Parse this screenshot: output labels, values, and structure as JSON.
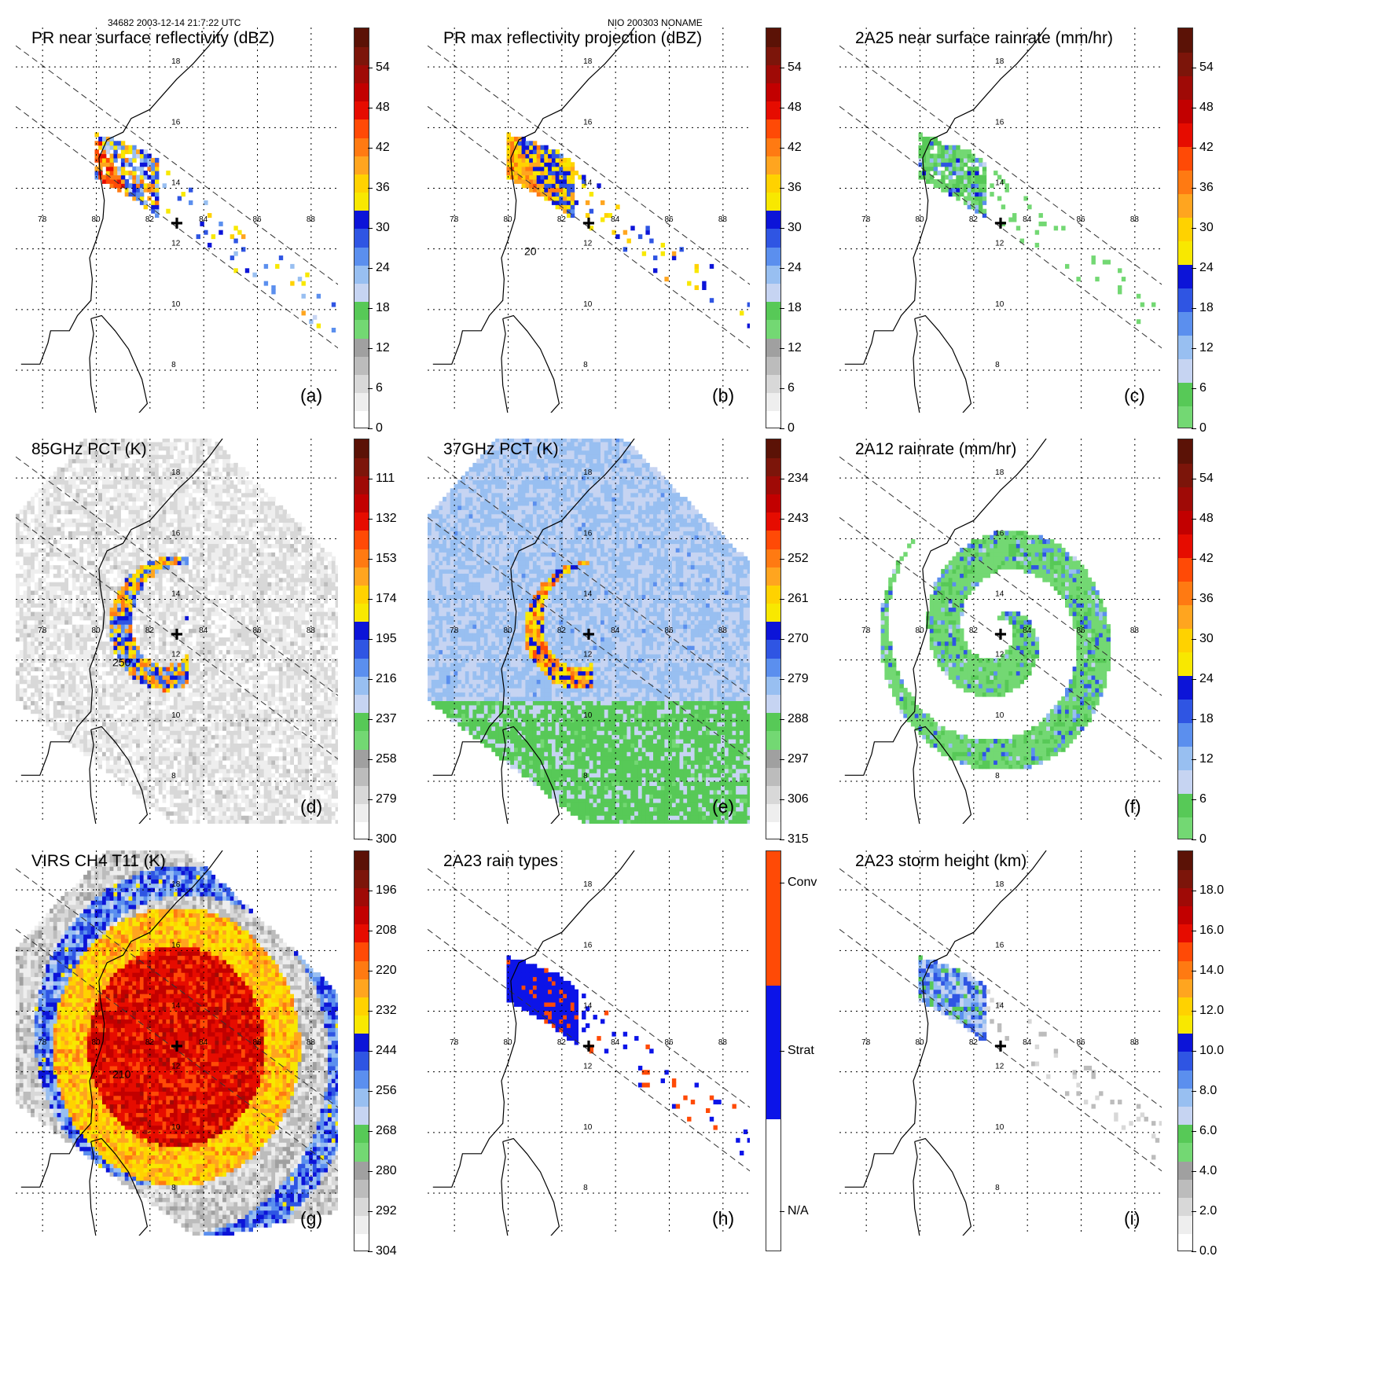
{
  "header": {
    "left": "34682 2003-12-14 21:7:22 UTC",
    "center": "NIO 200303 NONAME"
  },
  "map": {
    "lon_labels": [
      "78",
      "80",
      "82",
      "84",
      "86",
      "88"
    ],
    "lat_labels": [
      "18",
      "16",
      "14",
      "12",
      "10",
      "8"
    ]
  },
  "palettes": {
    "reflect": [
      "#ffffff",
      "#eeeeee",
      "#d8d8d8",
      "#bcbcbc",
      "#a0a0a0",
      "#73d873",
      "#57c957",
      "#c6d4f2",
      "#98bff1",
      "#5b8fee",
      "#2f55e3",
      "#0c14d8",
      "#f8e800",
      "#ffd200",
      "#ffa51f",
      "#ff7a12",
      "#ff4a06",
      "#e60c00",
      "#c20000",
      "#9f0a06",
      "#7c150a",
      "#5b1206"
    ],
    "bt": [
      "#ffffff",
      "#eeeeee",
      "#d8d8d8",
      "#bcbcbc",
      "#a0a0a0",
      "#73d873",
      "#57c957",
      "#c6d4f2",
      "#98bff1",
      "#5b8fee",
      "#2f55e3",
      "#0c14d8",
      "#f8e800",
      "#ffd200",
      "#ffa51f",
      "#ff7a12",
      "#ff4a06",
      "#e60c00",
      "#c20000",
      "#9f0a06",
      "#7c150a",
      "#5b1206"
    ],
    "rain": [
      "#73d873",
      "#57c957",
      "#c6d4f2",
      "#98bff1",
      "#5b8fee",
      "#2f55e3",
      "#0c14d8",
      "#f8e800",
      "#ffd200",
      "#ffa51f",
      "#ff7a12",
      "#ff4a06",
      "#e60c00",
      "#c20000",
      "#9f0a06",
      "#7c150a",
      "#5b1206"
    ],
    "height": [
      "#ffffff",
      "#eeeeee",
      "#d8d8d8",
      "#bcbcbc",
      "#a0a0a0",
      "#73d873",
      "#57c957",
      "#c6d4f2",
      "#98bff1",
      "#5b8fee",
      "#2f55e3",
      "#0c14d8",
      "#f8e800",
      "#ffd200",
      "#ffa51f",
      "#ff7a12",
      "#ff4a06",
      "#e60c00",
      "#c20000",
      "#9f0a06",
      "#7c150a",
      "#5b1206"
    ],
    "raintype": [
      "#ffffff",
      "#0c14e8",
      "#ff4a06"
    ]
  },
  "panels": [
    {
      "title": "PR near surface reflectivity (dBZ)",
      "label": "(a)",
      "palette": "reflect",
      "ticks": [
        "0",
        "6",
        "12",
        "18",
        "24",
        "30",
        "36",
        "42",
        "48",
        "54"
      ],
      "tick_min": 0,
      "tick_max": 60,
      "field": "pr",
      "contour": "",
      "swath": "narrow"
    },
    {
      "title": "PR max reflectivity projection (dBZ)",
      "label": "(b)",
      "palette": "reflect",
      "ticks": [
        "0",
        "6",
        "12",
        "18",
        "24",
        "30",
        "36",
        "42",
        "48",
        "54"
      ],
      "tick_min": 0,
      "tick_max": 60,
      "field": "prmax",
      "contour": "20",
      "swath": "narrow"
    },
    {
      "title": "2A25 near surface rainrate (mm/hr)",
      "label": "(c)",
      "palette": "rain",
      "ticks": [
        "0",
        "6",
        "12",
        "18",
        "24",
        "30",
        "36",
        "42",
        "48",
        "54"
      ],
      "tick_min": 0,
      "tick_max": 60,
      "field": "rain25",
      "contour": "",
      "swath": "narrow"
    },
    {
      "title": "85GHz PCT (K)",
      "label": "(d)",
      "palette": "bt",
      "ticks": [
        "300",
        "279",
        "258",
        "237",
        "216",
        "195",
        "174",
        "153",
        "132",
        "111"
      ],
      "tick_min": 0,
      "tick_max": 10.5,
      "field": "pct85",
      "contour": "250",
      "swath": "wide"
    },
    {
      "title": "37GHz PCT (K)",
      "label": "(e)",
      "palette": "bt",
      "ticks": [
        "315",
        "306",
        "297",
        "288",
        "279",
        "270",
        "261",
        "252",
        "243",
        "234"
      ],
      "tick_min": 0,
      "tick_max": 10.5,
      "field": "pct37",
      "contour": "",
      "swath": "wide"
    },
    {
      "title": "2A12 rainrate (mm/hr)",
      "label": "(f)",
      "palette": "rain",
      "ticks": [
        "0",
        "6",
        "12",
        "18",
        "24",
        "30",
        "36",
        "42",
        "48",
        "54"
      ],
      "tick_min": 0,
      "tick_max": 60,
      "field": "rain12",
      "contour": "",
      "swath": "wide"
    },
    {
      "title": "VIRS CH4 T11 (K)",
      "label": "(g)",
      "palette": "bt",
      "ticks": [
        "304",
        "292",
        "280",
        "268",
        "256",
        "244",
        "232",
        "220",
        "208",
        "196"
      ],
      "tick_min": 0,
      "tick_max": 10.5,
      "field": "virs",
      "contour": "210",
      "swath": "virs"
    },
    {
      "title": "2A23 rain types",
      "label": "(h)",
      "palette": "raintype",
      "ticks": [
        "N/A",
        "Strat",
        "Conv"
      ],
      "tick_min": 0,
      "tick_max": 2.8,
      "field": "types",
      "contour": "",
      "swath": "narrow"
    },
    {
      "title": "2A23 storm height (km)",
      "label": "(i)",
      "palette": "height",
      "ticks": [
        "0.0",
        "2.0",
        "4.0",
        "6.0",
        "8.0",
        "10.0",
        "12.0",
        "14.0",
        "16.0",
        "18.0"
      ],
      "tick_min": 0,
      "tick_max": 20,
      "field": "height",
      "contour": "",
      "swath": "narrow"
    }
  ]
}
